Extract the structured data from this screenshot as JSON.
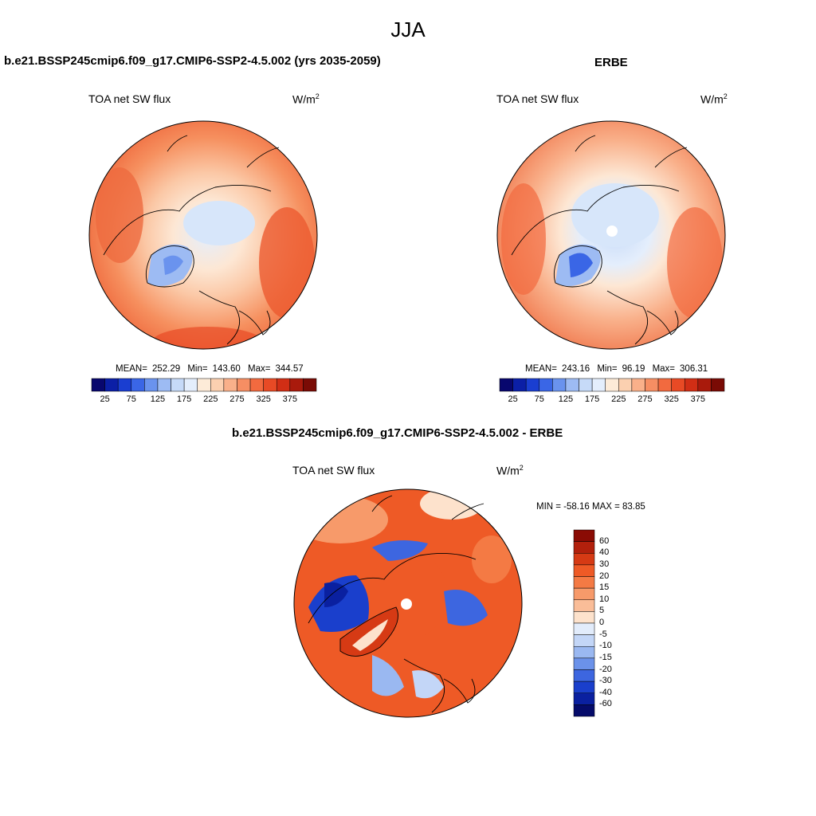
{
  "page_title": "JJA",
  "panels": [
    {
      "title": "b.e21.BSSP245cmip6.f09_g17.CMIP6-SSP2-4.5.002 (yrs 2035-2059)",
      "variable": "TOA net SW flux",
      "units": "W/m",
      "units_sup": "2",
      "stats": {
        "mean_label": "MEAN=",
        "mean": "252.29",
        "min_label": "Min=",
        "min": "143.60",
        "max_label": "Max=",
        "max": "344.57"
      }
    },
    {
      "title": "ERBE",
      "variable": "TOA net SW flux",
      "units": "W/m",
      "units_sup": "2",
      "stats": {
        "mean_label": "MEAN=",
        "mean": "243.16",
        "min_label": "Min=",
        "min": "96.19",
        "max_label": "Max=",
        "max": "306.31"
      }
    },
    {
      "title": "b.e21.BSSP245cmip6.f09_g17.CMIP6-SSP2-4.5.002 - ERBE",
      "variable": "TOA net SW flux",
      "units": "W/m",
      "units_sup": "2",
      "stats_text": "MIN = -58.16 MAX =  83.85"
    }
  ],
  "colorbar_abs": {
    "ticks": [
      "25",
      "75",
      "125",
      "175",
      "225",
      "275",
      "325",
      "375"
    ],
    "colors": [
      "#08076e",
      "#0b1fa6",
      "#1a3ed1",
      "#3a66e6",
      "#6a93ee",
      "#9dbbf3",
      "#c6daf8",
      "#e4eefc",
      "#fdebd8",
      "#fbd0b0",
      "#f9b08a",
      "#f68e63",
      "#f26a3f",
      "#e84a25",
      "#d12e15",
      "#a91a0c",
      "#7a0b05"
    ]
  },
  "colorbar_diff": {
    "labels": [
      "60",
      "40",
      "30",
      "20",
      "15",
      "10",
      "5",
      "0",
      "-5",
      "-10",
      "-15",
      "-20",
      "-30",
      "-40",
      "-60"
    ],
    "colors": [
      "#8a0b04",
      "#b2200c",
      "#d63a14",
      "#ee5a26",
      "#f47a44",
      "#f79a6a",
      "#fabd98",
      "#fde2cc",
      "#e2ecfb",
      "#c3d6f7",
      "#9ab8f1",
      "#6b92ea",
      "#3d66e0",
      "#1a3fcc",
      "#0a20a0",
      "#050b6a"
    ]
  },
  "colors": {
    "map_warm": "#f47a4c",
    "map_cool": "#c6daf8",
    "outline": "#000000"
  }
}
